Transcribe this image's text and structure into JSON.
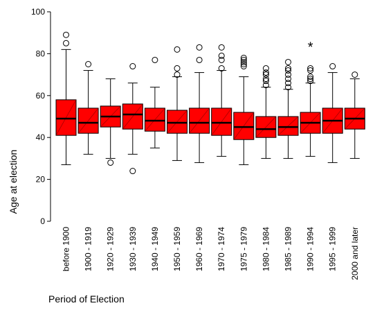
{
  "chart_data": {
    "type": "boxplot",
    "title": "",
    "xlabel": "Period of Election",
    "ylabel": "Age at election",
    "ylim": [
      0,
      100
    ],
    "yticks": [
      0,
      20,
      40,
      60,
      80,
      100
    ],
    "grid": false,
    "legend": "none",
    "colors": {
      "box_fill": "#ff0000",
      "box_edge": "#000000",
      "median": "#000000"
    },
    "categories": [
      "before 1900",
      "1900 - 1919",
      "1920 - 1929",
      "1930 - 1939",
      "1940 - 1949",
      "1950 - 1959",
      "1960 - 1969",
      "1970 - 1974",
      "1975 - 1979",
      "1980 - 1984",
      "1985 - 1989",
      "1990 - 1994",
      "1995 - 1999",
      "2000 and later"
    ],
    "boxes": [
      {
        "min": 27,
        "q1": 41,
        "median": 49,
        "q3": 58,
        "max": 82,
        "outliers": [
          85,
          89
        ],
        "extremes": []
      },
      {
        "min": 32,
        "q1": 42,
        "median": 47,
        "q3": 54,
        "max": 72,
        "outliers": [
          75
        ],
        "extremes": []
      },
      {
        "min": 30,
        "q1": 45,
        "median": 50,
        "q3": 55,
        "max": 68,
        "outliers": [
          28
        ],
        "extremes": []
      },
      {
        "min": 32,
        "q1": 44,
        "median": 51,
        "q3": 56,
        "max": 66,
        "outliers": [
          24,
          74
        ],
        "extremes": []
      },
      {
        "min": 35,
        "q1": 43,
        "median": 48,
        "q3": 54,
        "max": 64,
        "outliers": [
          77
        ],
        "extremes": []
      },
      {
        "min": 29,
        "q1": 42,
        "median": 47,
        "q3": 53,
        "max": 69,
        "outliers": [
          70,
          73,
          82
        ],
        "extremes": []
      },
      {
        "min": 28,
        "q1": 42,
        "median": 47,
        "q3": 54,
        "max": 71,
        "outliers": [
          77,
          83
        ],
        "extremes": []
      },
      {
        "min": 31,
        "q1": 41,
        "median": 47,
        "q3": 54,
        "max": 72,
        "outliers": [
          73,
          77,
          79,
          83
        ],
        "extremes": []
      },
      {
        "min": 27,
        "q1": 39,
        "median": 45,
        "q3": 52,
        "max": 69,
        "outliers": [
          74,
          75,
          76,
          77,
          78
        ],
        "extremes": []
      },
      {
        "min": 30,
        "q1": 40,
        "median": 44,
        "q3": 50,
        "max": 64,
        "outliers": [
          65,
          67,
          68,
          70,
          71,
          73
        ],
        "extremes": []
      },
      {
        "min": 30,
        "q1": 41,
        "median": 45,
        "q3": 50,
        "max": 63,
        "outliers": [
          64,
          66,
          68,
          70,
          72,
          73,
          76
        ],
        "extremes": []
      },
      {
        "min": 31,
        "q1": 42,
        "median": 47,
        "q3": 52,
        "max": 66,
        "outliers": [
          67,
          68,
          69,
          72,
          73
        ],
        "extremes": [
          84
        ]
      },
      {
        "min": 28,
        "q1": 42,
        "median": 48,
        "q3": 54,
        "max": 71,
        "outliers": [
          74
        ],
        "extremes": []
      },
      {
        "min": 30,
        "q1": 44,
        "median": 49,
        "q3": 54,
        "max": 68,
        "outliers": [
          70
        ],
        "extremes": []
      }
    ]
  }
}
